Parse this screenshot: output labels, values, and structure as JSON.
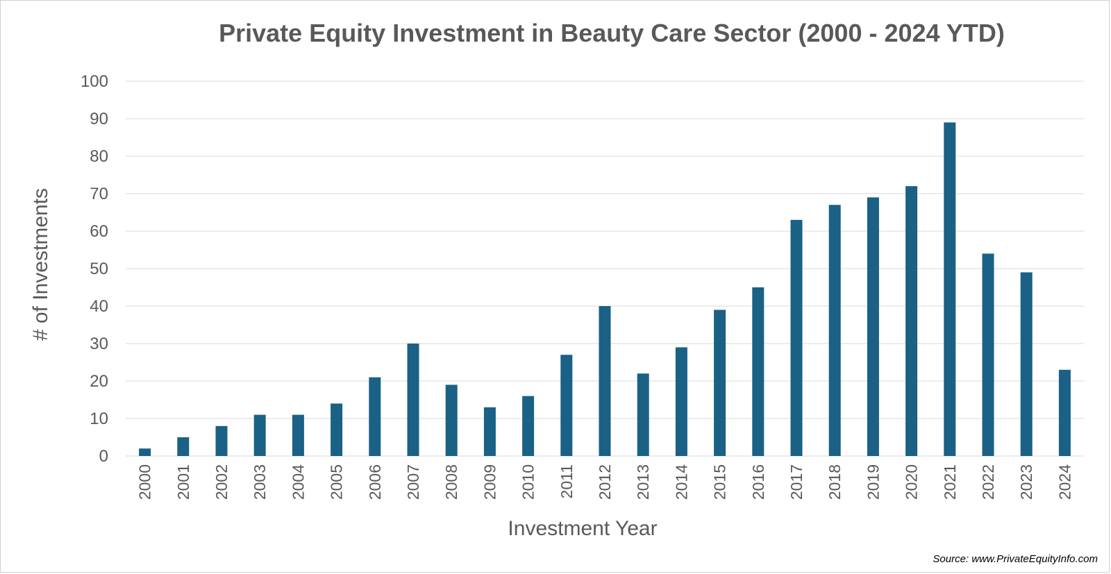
{
  "chart_data": {
    "type": "bar",
    "title": "Private Equity Investment in Beauty Care Sector (2000 - 2024 YTD)",
    "xlabel": "Investment Year",
    "ylabel": "# of Investments",
    "categories": [
      "2000",
      "2001",
      "2002",
      "2003",
      "2004",
      "2005",
      "2006",
      "2007",
      "2008",
      "2009",
      "2010",
      "2011",
      "2012",
      "2013",
      "2014",
      "2015",
      "2016",
      "2017",
      "2018",
      "2019",
      "2020",
      "2021",
      "2022",
      "2023",
      "2024"
    ],
    "values": [
      2,
      5,
      8,
      11,
      11,
      14,
      21,
      30,
      19,
      13,
      16,
      27,
      40,
      22,
      29,
      39,
      45,
      63,
      67,
      69,
      72,
      89,
      54,
      49,
      23
    ],
    "ylim": [
      0,
      100
    ],
    "yticks": [
      0,
      10,
      20,
      30,
      40,
      50,
      60,
      70,
      80,
      90,
      100
    ],
    "grid": true,
    "legend": "none",
    "bar_color": "#1a6185",
    "grid_color": "#d9d9d9",
    "source": "Source: www.PrivateEquityInfo.com"
  }
}
